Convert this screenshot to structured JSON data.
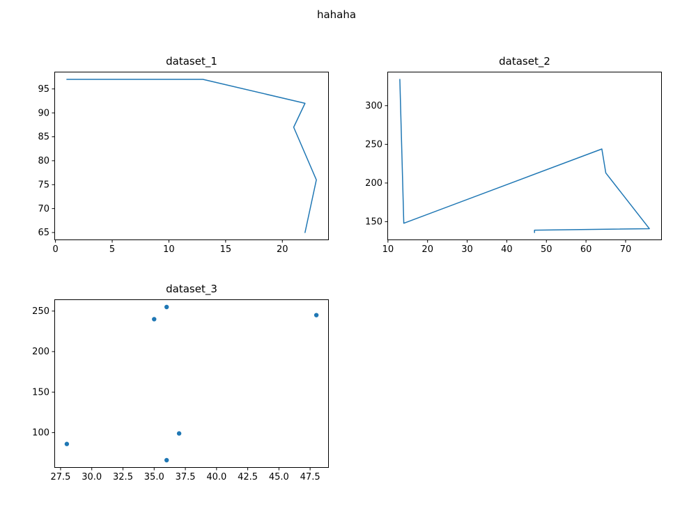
{
  "suptitle": "hahaha",
  "accent_color": "#1f77b4",
  "chart_data": [
    {
      "type": "line",
      "title": "dataset_1",
      "color": "#1f77b4",
      "points": [
        [
          1,
          97
        ],
        [
          3,
          97
        ],
        [
          1,
          97
        ],
        [
          13,
          97
        ],
        [
          22,
          92
        ],
        [
          21,
          87
        ],
        [
          23,
          76
        ],
        [
          22,
          65
        ]
      ],
      "xlim": [
        -0.1,
        24.1
      ],
      "ylim": [
        63.4,
        98.6
      ],
      "xticks": [
        {
          "v": 0,
          "label": "0"
        },
        {
          "v": 5,
          "label": "5"
        },
        {
          "v": 10,
          "label": "10"
        },
        {
          "v": 15,
          "label": "15"
        },
        {
          "v": 20,
          "label": "20"
        }
      ],
      "yticks": [
        {
          "v": 65,
          "label": "65"
        },
        {
          "v": 70,
          "label": "70"
        },
        {
          "v": 75,
          "label": "75"
        },
        {
          "v": 80,
          "label": "80"
        },
        {
          "v": 85,
          "label": "85"
        },
        {
          "v": 90,
          "label": "90"
        },
        {
          "v": 95,
          "label": "95"
        }
      ],
      "grid": false,
      "legend": null
    },
    {
      "type": "line",
      "title": "dataset_2",
      "color": "#1f77b4",
      "points": [
        [
          13,
          334
        ],
        [
          14,
          148
        ],
        [
          64,
          244
        ],
        [
          65,
          213
        ],
        [
          76,
          141
        ],
        [
          47,
          139
        ],
        [
          47,
          136
        ]
      ],
      "xlim": [
        9.85,
        79.15
      ],
      "ylim": [
        126.1,
        343.9
      ],
      "xticks": [
        {
          "v": 10,
          "label": "10"
        },
        {
          "v": 20,
          "label": "20"
        },
        {
          "v": 30,
          "label": "30"
        },
        {
          "v": 40,
          "label": "40"
        },
        {
          "v": 50,
          "label": "50"
        },
        {
          "v": 60,
          "label": "60"
        },
        {
          "v": 70,
          "label": "70"
        }
      ],
      "yticks": [
        {
          "v": 150,
          "label": "150"
        },
        {
          "v": 200,
          "label": "200"
        },
        {
          "v": 250,
          "label": "250"
        },
        {
          "v": 300,
          "label": "300"
        }
      ],
      "grid": false,
      "legend": null
    },
    {
      "type": "scatter",
      "title": "dataset_3",
      "color": "#1f77b4",
      "points": [
        [
          28,
          86
        ],
        [
          35,
          240
        ],
        [
          36,
          255
        ],
        [
          37,
          99
        ],
        [
          36,
          66
        ],
        [
          48,
          245
        ]
      ],
      "xlim": [
        27,
        49
      ],
      "ylim": [
        56.55,
        264.45
      ],
      "xticks": [
        {
          "v": 27.5,
          "label": "27.5"
        },
        {
          "v": 30,
          "label": "30.0"
        },
        {
          "v": 32.5,
          "label": "32.5"
        },
        {
          "v": 35,
          "label": "35.0"
        },
        {
          "v": 37.5,
          "label": "37.5"
        },
        {
          "v": 40,
          "label": "40.0"
        },
        {
          "v": 42.5,
          "label": "42.5"
        },
        {
          "v": 45,
          "label": "45.0"
        },
        {
          "v": 47.5,
          "label": "47.5"
        }
      ],
      "yticks": [
        {
          "v": 100,
          "label": "100"
        },
        {
          "v": 150,
          "label": "150"
        },
        {
          "v": 200,
          "label": "200"
        },
        {
          "v": 250,
          "label": "250"
        }
      ],
      "grid": false,
      "legend": null
    }
  ]
}
